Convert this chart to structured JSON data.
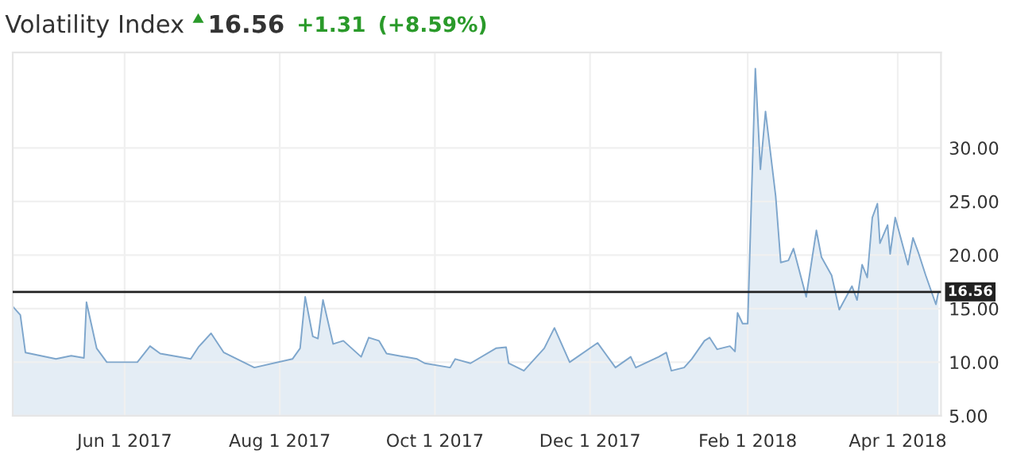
{
  "chart_data": {
    "type": "area",
    "title": "Volatility Index",
    "annotations": [
      "16.56",
      "+1.31",
      "(+8.59%)"
    ],
    "x": [
      "2017-04-18",
      "2017-04-21",
      "2017-04-23",
      "2017-04-29",
      "2017-05-05",
      "2017-05-11",
      "2017-05-16",
      "2017-05-17",
      "2017-05-21",
      "2017-05-25",
      "2017-06-06",
      "2017-06-11",
      "2017-06-15",
      "2017-06-27",
      "2017-06-30",
      "2017-07-05",
      "2017-07-10",
      "2017-07-22",
      "2017-08-06",
      "2017-08-09",
      "2017-08-11",
      "2017-08-14",
      "2017-08-16",
      "2017-08-18",
      "2017-08-22",
      "2017-08-26",
      "2017-09-02",
      "2017-09-05",
      "2017-09-09",
      "2017-09-12",
      "2017-09-24",
      "2017-09-27",
      "2017-10-07",
      "2017-10-09",
      "2017-10-15",
      "2017-10-25",
      "2017-10-29",
      "2017-10-30",
      "2017-11-05",
      "2017-11-13",
      "2017-11-17",
      "2017-11-23",
      "2017-12-04",
      "2017-12-11",
      "2017-12-17",
      "2017-12-19",
      "2017-12-28",
      "2017-12-31",
      "2018-01-02",
      "2018-01-07",
      "2018-01-10",
      "2018-01-15",
      "2018-01-17",
      "2018-01-20",
      "2018-01-25",
      "2018-01-27",
      "2018-01-28",
      "2018-01-30",
      "2018-02-01",
      "2018-02-04",
      "2018-02-06",
      "2018-02-08",
      "2018-02-12",
      "2018-02-14",
      "2018-02-17",
      "2018-02-19",
      "2018-02-24",
      "2018-02-28",
      "2018-03-02",
      "2018-03-06",
      "2018-03-09",
      "2018-03-14",
      "2018-03-16",
      "2018-03-18",
      "2018-03-20",
      "2018-03-22",
      "2018-03-24",
      "2018-03-25",
      "2018-03-28",
      "2018-03-29",
      "2018-03-31",
      "2018-04-05",
      "2018-04-07",
      "2018-04-09",
      "2018-04-12",
      "2018-04-16",
      "2018-04-17"
    ],
    "series": [
      {
        "color": "#7ea6cc",
        "values": [
          15.2,
          14.4,
          10.9,
          10.6,
          10.3,
          10.6,
          10.4,
          15.6,
          11.3,
          10.0,
          10.0,
          11.5,
          10.8,
          10.3,
          11.4,
          12.7,
          10.9,
          9.5,
          10.3,
          11.3,
          16.1,
          12.4,
          12.2,
          15.8,
          11.7,
          12.0,
          10.5,
          12.3,
          12.0,
          10.8,
          10.3,
          9.9,
          9.5,
          10.3,
          9.9,
          11.3,
          11.4,
          9.9,
          9.2,
          11.3,
          13.2,
          10.0,
          11.8,
          9.5,
          10.5,
          9.5,
          10.5,
          10.9,
          9.2,
          9.5,
          10.3,
          12.0,
          12.3,
          11.2,
          11.5,
          11.0,
          14.6,
          13.6,
          13.6,
          37.4,
          28.0,
          33.4,
          25.5,
          19.3,
          19.5,
          20.6,
          16.1,
          22.3,
          19.8,
          18.1,
          14.9,
          17.1,
          15.8,
          19.1,
          17.9,
          23.5,
          24.8,
          21.1,
          22.8,
          20.1,
          23.5,
          19.1,
          21.6,
          20.3,
          18.1,
          15.4,
          16.56
        ]
      }
    ],
    "xlim": [
      "2017-04-18",
      "2018-04-18"
    ],
    "xticks": [
      {
        "value": "2017-06-01",
        "label": "Jun 1 2017"
      },
      {
        "value": "2017-08-01",
        "label": "Aug 1 2017"
      },
      {
        "value": "2017-10-01",
        "label": "Oct 1 2017"
      },
      {
        "value": "2017-12-01",
        "label": "Dec 1 2017"
      },
      {
        "value": "2018-02-01",
        "label": "Feb 1 2018"
      },
      {
        "value": "2018-04-01",
        "label": "Apr 1 2018"
      }
    ],
    "ylim": [
      5,
      38.9
    ],
    "yticks": [
      {
        "value": 5,
        "label": "5.00"
      },
      {
        "value": 10,
        "label": "10.00"
      },
      {
        "value": 15,
        "label": "15.00"
      },
      {
        "value": 20,
        "label": "20.00"
      },
      {
        "value": 25,
        "label": "25.00"
      },
      {
        "value": 30,
        "label": "30.00"
      }
    ],
    "ref_lines": [
      {
        "axis": "y",
        "value": 16.56,
        "label": "16.56",
        "color": "#222222"
      }
    ],
    "grid": true,
    "legend": false
  }
}
